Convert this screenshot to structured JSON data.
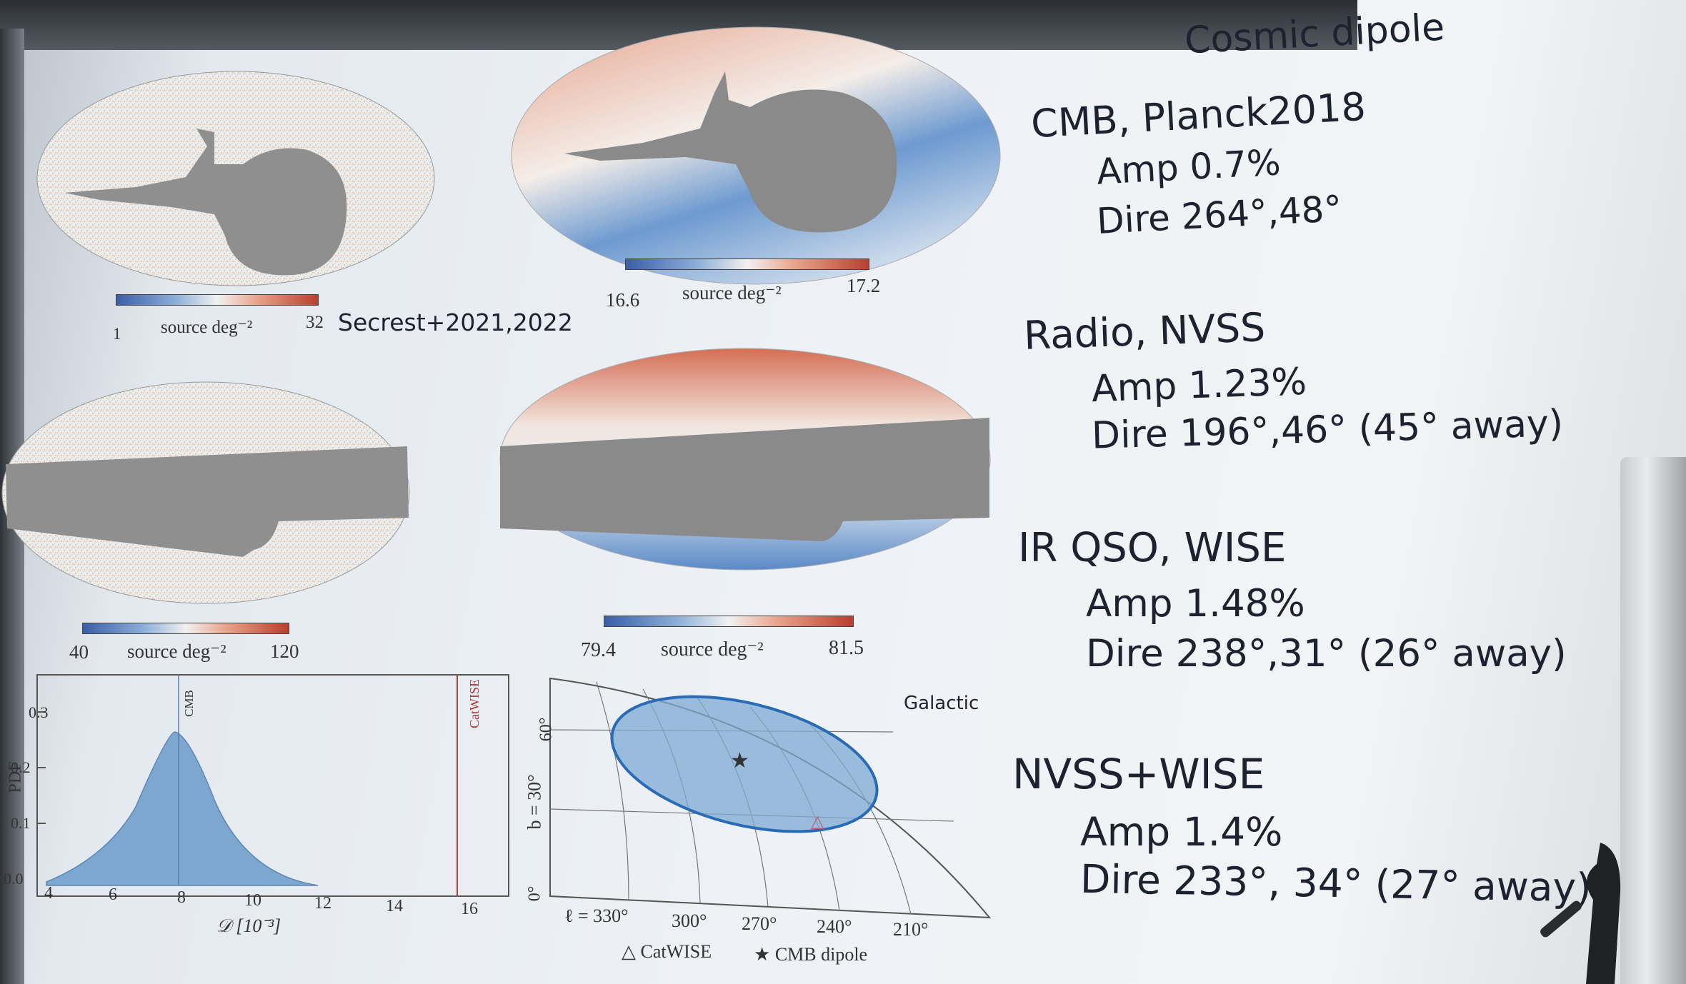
{
  "slide": {
    "title": "Cosmic dipole",
    "citation": "Secrest+2021,2022",
    "entries": [
      {
        "name": "CMB, Planck2018",
        "amp": "Amp 0.7%",
        "dire": "Dire 264°,48°"
      },
      {
        "name": "Radio, NVSS",
        "amp": "Amp 1.23%",
        "dire": "Dire 196°,46° (45° away)"
      },
      {
        "name": "IR QSO, WISE",
        "amp": "Amp 1.48%",
        "dire": "Dire 238°,31° (26° away)"
      },
      {
        "name": "NVSS+WISE",
        "amp": "Amp 1.4%",
        "dire": "Dire 233°, 34° (27° away)"
      }
    ]
  },
  "colorbars": [
    {
      "min": "1",
      "label": "source deg⁻²",
      "max": "32"
    },
    {
      "min": "16.6",
      "label": "source deg⁻²",
      "max": "17.2"
    },
    {
      "min": "40",
      "label": "source deg⁻²",
      "max": "120"
    },
    {
      "min": "79.4",
      "label": "source deg⁻²",
      "max": "81.5"
    }
  ],
  "pdf_plot": {
    "ylabel": "PDF",
    "xlabel": "𝒟 [10⁻³]",
    "yticks": [
      "0.0",
      "0.1",
      "0.2",
      "0.3"
    ],
    "xticks": [
      "4",
      "6",
      "8",
      "10",
      "12",
      "14",
      "16"
    ],
    "line_cmb": "CMB",
    "line_catwise": "CatWISE",
    "fill_color": "#7ea7d0"
  },
  "sky_plot": {
    "frame": "Galactic",
    "lon_ticks": [
      "ℓ = 330°",
      "300°",
      "270°",
      "240°",
      "210°"
    ],
    "lat_ticks": [
      "0°",
      "b = 30°",
      "60°"
    ],
    "legend_catwise": "CatWISE",
    "legend_cmb": "CMB dipole"
  }
}
